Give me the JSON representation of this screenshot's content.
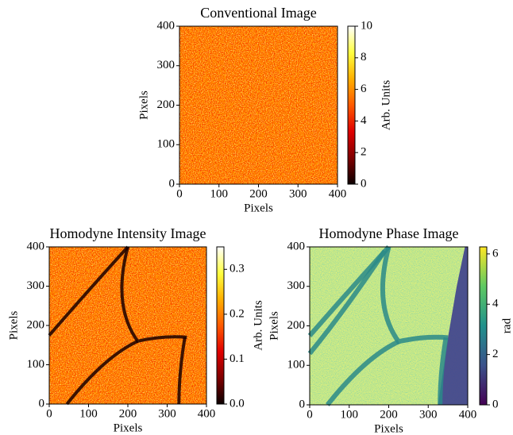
{
  "chart_data": [
    {
      "type": "heatmap",
      "title": "Conventional Image",
      "xlabel": "Pixels",
      "ylabel": "Pixels",
      "xlim": [
        0,
        400
      ],
      "ylim": [
        0,
        400
      ],
      "xticks": [
        0,
        100,
        200,
        300,
        400
      ],
      "yticks": [
        0,
        100,
        200,
        300,
        400
      ],
      "colormap": "hot",
      "colorbar": {
        "label": "Arb. Units",
        "lim": [
          0,
          10
        ],
        "ticks": [
          0,
          2,
          4,
          6,
          8,
          10
        ]
      }
    },
    {
      "type": "heatmap",
      "title": "Homodyne Intensity Image",
      "xlabel": "Pixels",
      "ylabel": "Pixels",
      "xlim": [
        0,
        400
      ],
      "ylim": [
        0,
        400
      ],
      "xticks": [
        0,
        100,
        200,
        300,
        400
      ],
      "yticks": [
        0,
        100,
        200,
        300,
        400
      ],
      "colormap": "hot",
      "colorbar": {
        "label": "Arb. Units",
        "lim": [
          0,
          0.35
        ],
        "ticks": [
          {
            "value": 0,
            "label": "0.0"
          },
          0.1,
          0.2,
          0.3
        ]
      }
    },
    {
      "type": "heatmap",
      "title": "Homodyne Phase Image",
      "xlabel": "Pixels",
      "ylabel": "Pixels",
      "xlim": [
        0,
        400
      ],
      "ylim": [
        0,
        400
      ],
      "xticks": [
        0,
        100,
        200,
        300,
        400
      ],
      "yticks": [
        0,
        100,
        200,
        300,
        400
      ],
      "colormap": "viridis",
      "colorbar": {
        "label": "rad",
        "lim": [
          0,
          6.28
        ],
        "ticks": [
          0,
          2,
          4,
          6
        ]
      }
    }
  ]
}
